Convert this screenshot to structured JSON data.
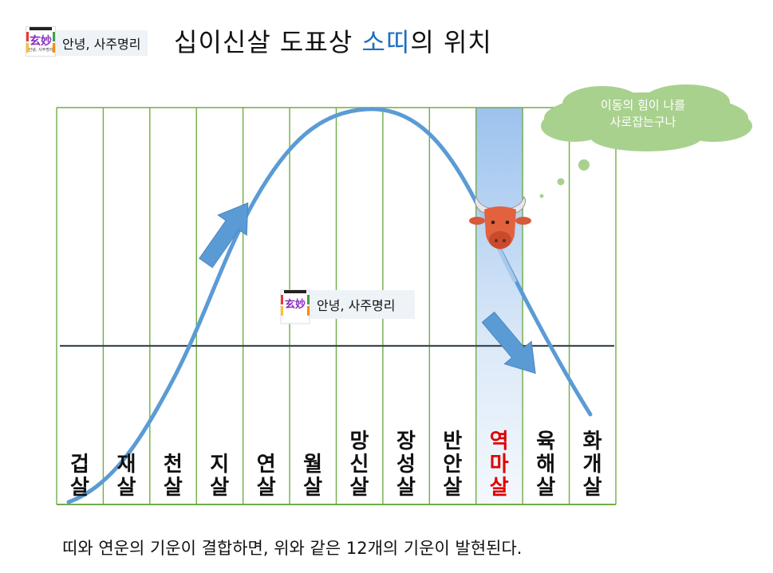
{
  "header": {
    "brand_label": "안녕, 사주명리",
    "logo_hanja": "玄妙",
    "logo_small_text": "안녕, 사주명리",
    "title_prefix": "십이신살 도표상 ",
    "title_highlight": "소띠",
    "title_suffix": "의 위치"
  },
  "chart_data": {
    "type": "diagram",
    "columns": [
      [
        "겁",
        "살"
      ],
      [
        "재",
        "살"
      ],
      [
        "천",
        "살"
      ],
      [
        "지",
        "살"
      ],
      [
        "연",
        "살"
      ],
      [
        "월",
        "살"
      ],
      [
        "망",
        "신",
        "살"
      ],
      [
        "장",
        "성",
        "살"
      ],
      [
        "반",
        "안",
        "살"
      ],
      [
        "역",
        "마",
        "살"
      ],
      [
        "육",
        "해",
        "살"
      ],
      [
        "화",
        "개",
        "살"
      ]
    ],
    "highlighted_column": "역마살",
    "highlight_color": "#e00000",
    "curve_color": "#5b9bd5",
    "grid_color": "#70ad47",
    "thought_bubble": {
      "line1": "이동의 힘이 나를",
      "line2": "사로잡는구나"
    },
    "watermark_label": "안녕, 사주명리"
  },
  "footer": {
    "text": "띠와 연운의 기운이 결합하면, 위와 같은 12개의 기운이 발현된다."
  }
}
